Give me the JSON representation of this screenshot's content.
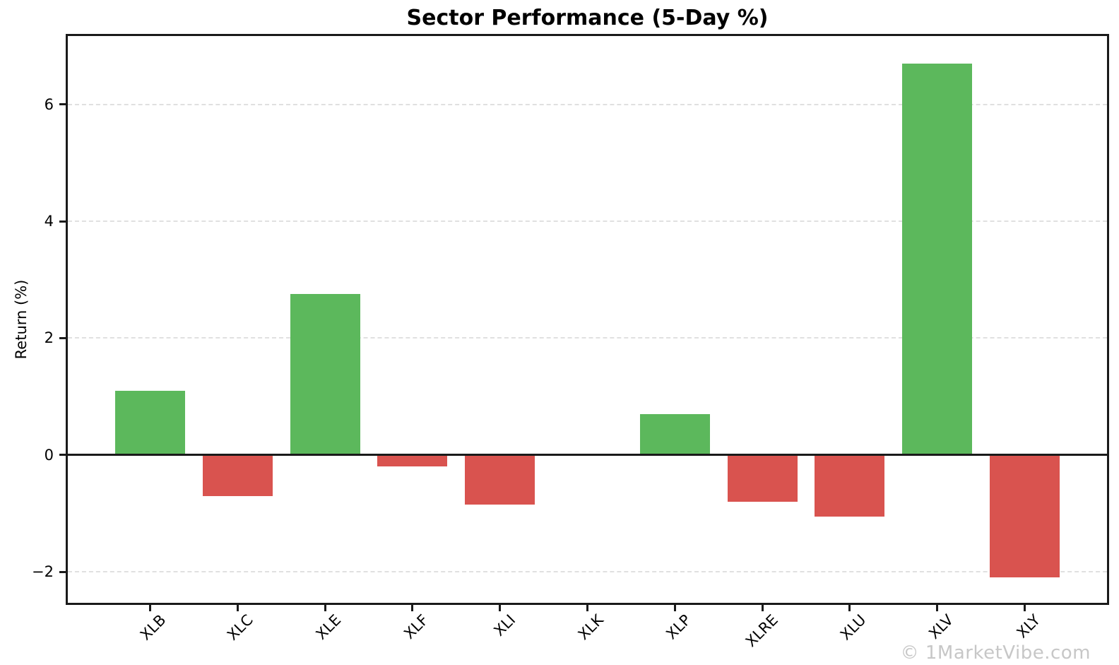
{
  "watermark": "© 1MarketVibe.com",
  "chart_data": {
    "type": "bar",
    "title": "Sector Performance (5-Day %)",
    "xlabel": "",
    "ylabel": "Return (%)",
    "categories": [
      "XLB",
      "XLC",
      "XLE",
      "XLF",
      "XLI",
      "XLK",
      "XLP",
      "XLRE",
      "XLU",
      "XLV",
      "XLY"
    ],
    "values": [
      1.1,
      -0.7,
      2.75,
      -0.2,
      -0.85,
      0.0,
      0.7,
      -0.8,
      -1.05,
      6.7,
      -2.1
    ],
    "ylim": [
      -2.53,
      7.17
    ],
    "yticks": [
      -2,
      0,
      2,
      4,
      6
    ],
    "grid": true,
    "legend": "none",
    "positive_color": "#5cb85c",
    "negative_color": "#d9534f",
    "zero_line_color": "#1a1a1a",
    "gridline_color": "#e0e0e0"
  }
}
